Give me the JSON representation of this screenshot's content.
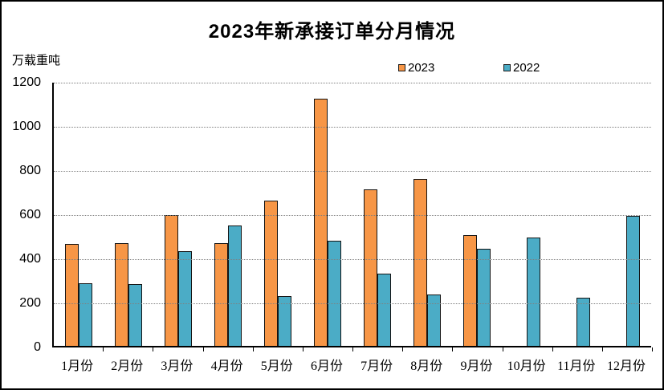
{
  "title": "2023年新承接订单分月情况",
  "unit_label": "万载重吨",
  "legend": {
    "items": [
      {
        "label": "2023",
        "color": "#F79646"
      },
      {
        "label": "2022",
        "color": "#4BACC6"
      }
    ]
  },
  "chart_data": {
    "type": "bar",
    "title": "2023年新承接订单分月情况",
    "ylabel": "万载重吨",
    "categories": [
      "1月份",
      "2月份",
      "3月份",
      "4月份",
      "5月份",
      "6月份",
      "7月份",
      "8月份",
      "9月份",
      "10月份",
      "11月份",
      "12月份"
    ],
    "series": [
      {
        "name": "2023",
        "color": "#F79646",
        "values": [
          461,
          464,
          592,
          466,
          658,
          1121,
          708,
          756,
          501,
          null,
          null,
          null
        ]
      },
      {
        "name": "2022",
        "color": "#4BACC6",
        "values": [
          283,
          281,
          428,
          547,
          227,
          476,
          326,
          233,
          440,
          490,
          219,
          590
        ]
      }
    ],
    "ylim": [
      0,
      1200
    ],
    "yticks": [
      0,
      200,
      400,
      600,
      800,
      1000,
      1200
    ],
    "grid": "horizontal-dotted",
    "legend_position": "top-center",
    "bar_border_color": "#141414"
  }
}
